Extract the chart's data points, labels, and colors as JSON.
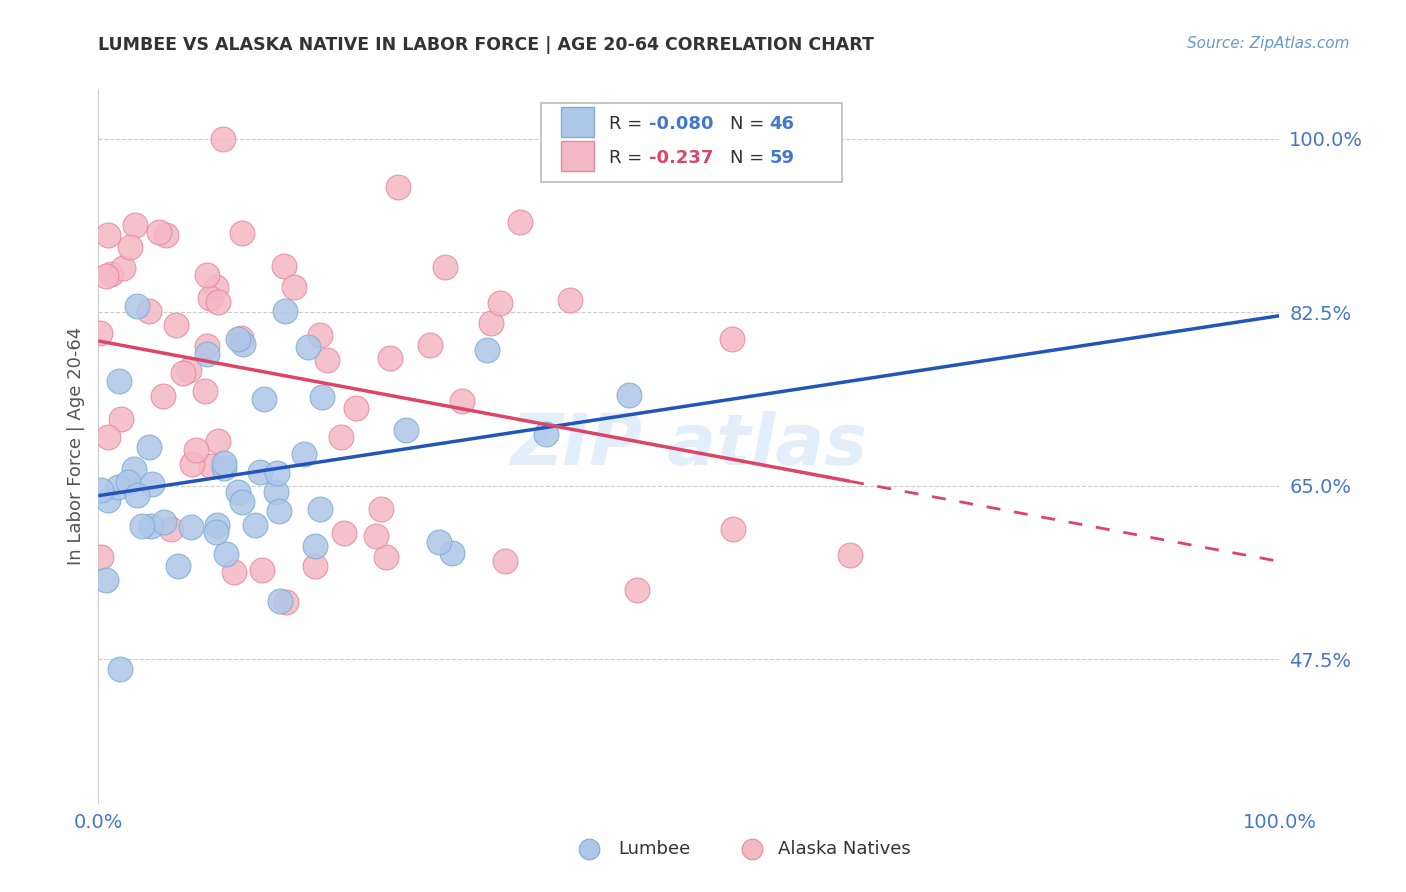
{
  "title": "LUMBEE VS ALASKA NATIVE IN LABOR FORCE | AGE 20-64 CORRELATION CHART",
  "source": "Source: ZipAtlas.com",
  "ylabel": "In Labor Force | Age 20-64",
  "yticks": [
    0.475,
    0.65,
    0.825,
    1.0
  ],
  "ytick_labels": [
    "47.5%",
    "65.0%",
    "82.5%",
    "100.0%"
  ],
  "xlim": [
    0.0,
    1.0
  ],
  "ylim": [
    0.33,
    1.05
  ],
  "lumbee_color": "#aec6e8",
  "alaska_color": "#f4b8c4",
  "lumbee_edge": "#7aafd4",
  "alaska_edge": "#e888a0",
  "trend_blue": "#2255bb",
  "trend_pink": "#dd4466",
  "background_color": "#ffffff",
  "grid_color": "#cccccc",
  "tick_color": "#4477cc",
  "title_color": "#333333",
  "source_color": "#6699cc",
  "ylabel_color": "#555555"
}
